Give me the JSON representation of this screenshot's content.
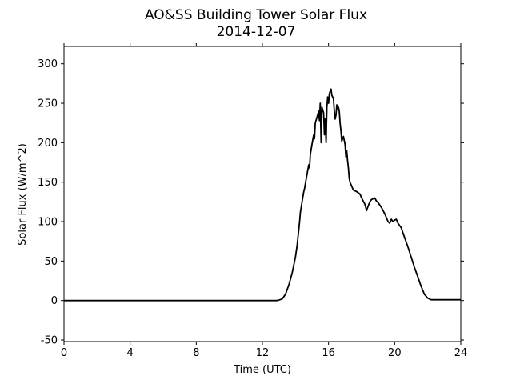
{
  "chart_data": {
    "type": "line",
    "title": "AO&SS Building Tower Solar Flux",
    "subtitle": "2014-12-07",
    "xlabel": "Time (UTC)",
    "ylabel": "Solar Flux (W/m^2)",
    "xlim": [
      0,
      24
    ],
    "ylim": [
      -52,
      322
    ],
    "xticks": [
      0,
      4,
      8,
      12,
      16,
      20,
      24
    ],
    "yticks": [
      -50,
      0,
      50,
      100,
      150,
      200,
      250,
      300
    ],
    "grid": false,
    "line_color": "#000000",
    "series": [
      {
        "x": [
          0,
          4,
          8,
          12,
          12.9,
          13.2,
          13.4,
          13.6,
          13.8,
          14.0,
          14.1,
          14.2,
          14.25,
          14.3,
          14.4,
          14.5,
          14.55,
          14.6,
          14.7,
          14.8,
          14.85,
          14.9,
          15.0,
          15.1,
          15.15,
          15.2,
          15.3,
          15.4,
          15.45,
          15.5,
          15.55,
          15.6,
          15.7,
          15.75,
          15.8,
          15.85,
          15.9,
          15.95,
          16.0,
          16.05,
          16.1,
          16.15,
          16.2,
          16.25,
          16.3,
          16.35,
          16.4,
          16.45,
          16.5,
          16.55,
          16.6,
          16.65,
          16.7,
          16.75,
          16.8,
          16.9,
          17.0,
          17.05,
          17.1,
          17.15,
          17.2,
          17.25,
          17.3,
          17.4,
          17.5,
          17.7,
          17.9,
          18.0,
          18.2,
          18.3,
          18.4,
          18.5,
          18.6,
          18.8,
          18.9,
          19.0,
          19.2,
          19.4,
          19.6,
          19.7,
          19.8,
          19.9,
          20.0,
          20.1,
          20.2,
          20.4,
          20.6,
          20.8,
          21.0,
          21.2,
          21.4,
          21.6,
          21.8,
          22.0,
          22.2,
          22.4,
          22.6,
          23.0,
          24
        ],
        "y": [
          0,
          0,
          0,
          0,
          0,
          2,
          8,
          20,
          35,
          55,
          70,
          90,
          100,
          112,
          125,
          138,
          142,
          148,
          160,
          172,
          168,
          185,
          198,
          210,
          205,
          225,
          232,
          240,
          228,
          250,
          200,
          245,
          238,
          210,
          230,
          200,
          245,
          258,
          250,
          262,
          265,
          268,
          260,
          258,
          255,
          240,
          230,
          235,
          248,
          242,
          245,
          240,
          225,
          215,
          202,
          208,
          198,
          182,
          190,
          178,
          168,
          155,
          150,
          145,
          140,
          138,
          135,
          130,
          122,
          114,
          120,
          125,
          128,
          130,
          126,
          124,
          118,
          110,
          100,
          98,
          103,
          100,
          102,
          103,
          98,
          92,
          80,
          68,
          55,
          42,
          30,
          18,
          8,
          3,
          1,
          1,
          1,
          1,
          1
        ]
      }
    ]
  }
}
